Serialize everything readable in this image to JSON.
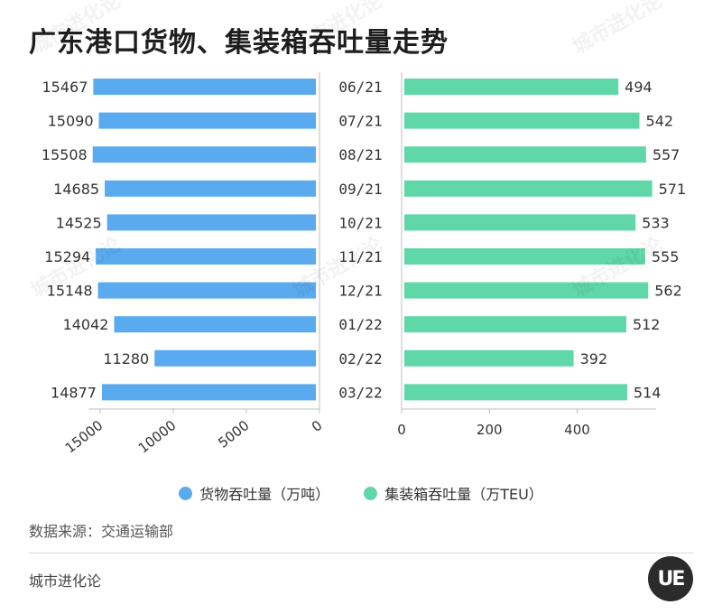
{
  "title": "广东港口货物、集装箱吞吐量走势",
  "source": "数据来源：交通运输部",
  "brand": "城市进化论",
  "logo_text": "UE",
  "watermark": "城市进化论",
  "colors": {
    "cargo": "#5aaaf0",
    "container": "#5fd7a8",
    "axis": "#bfbfbf"
  },
  "legend": [
    {
      "name": "货物吞吐量（万吨）",
      "color": "#5aaaf0"
    },
    {
      "name": "集装箱吞吐量（万TEU）",
      "color": "#5fd7a8"
    }
  ],
  "chart_data": {
    "type": "bar",
    "orientation": "horizontal",
    "categories": [
      "06/21",
      "07/21",
      "08/21",
      "09/21",
      "10/21",
      "11/21",
      "12/21",
      "01/22",
      "02/22",
      "03/22"
    ],
    "series": [
      {
        "name": "货物吞吐量（万吨）",
        "values": [
          15467,
          15090,
          15508,
          14685,
          14525,
          15294,
          15148,
          14042,
          11280,
          14877
        ],
        "axis_ticks": [
          15000,
          10000,
          5000,
          0
        ],
        "xlim": [
          15800,
          0
        ]
      },
      {
        "name": "集装箱吞吐量（万TEU）",
        "values": [
          494,
          542,
          557,
          571,
          533,
          555,
          562,
          512,
          392,
          514
        ],
        "axis_ticks": [
          0,
          200,
          400
        ],
        "xlim": [
          0,
          580
        ]
      }
    ],
    "legend_position": "bottom-center",
    "grid": false
  }
}
